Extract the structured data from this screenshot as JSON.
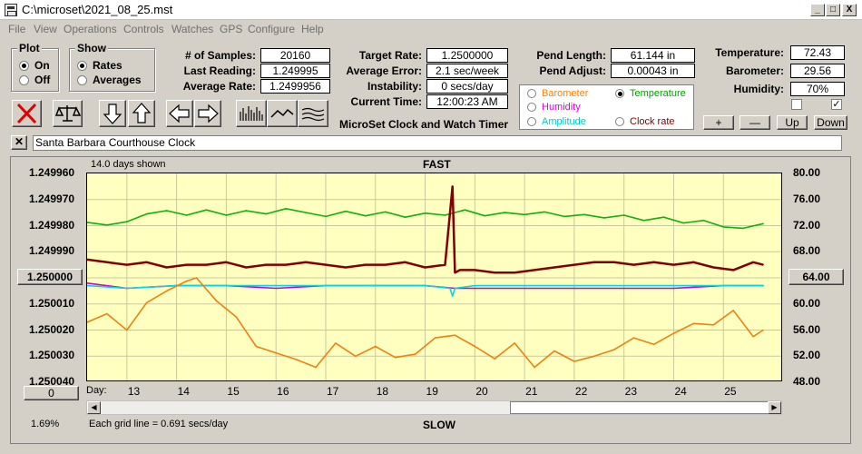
{
  "window": {
    "title": "C:\\microset\\2021_08_25.mst",
    "minimize": "_",
    "maximize": "□",
    "close": "X"
  },
  "menu": [
    "File",
    "View",
    "Operations",
    "Controls",
    "Watches",
    "GPS",
    "Configure",
    "Help"
  ],
  "plot_group": {
    "title": "Plot",
    "options": [
      {
        "label": "On",
        "selected": true
      },
      {
        "label": "Off",
        "selected": false
      }
    ]
  },
  "show_group": {
    "title": "Show",
    "options": [
      {
        "label": "Rates",
        "selected": true
      },
      {
        "label": "Averages",
        "selected": false
      }
    ]
  },
  "stats": {
    "samples_label": "# of Samples:",
    "samples": "20160",
    "last_label": "Last Reading:",
    "last": "1.249995",
    "avg_label": "Average Rate:",
    "avg": "1.2499956"
  },
  "rates": {
    "target_label": "Target Rate:",
    "target": "1.2500000",
    "error_label": "Average Error:",
    "error": "2.1 sec/week",
    "instability_label": "Instability:",
    "instability": "0 secs/day",
    "time_label": "Current Time:",
    "time": "12:00:23 AM"
  },
  "app_title": "MicroSet Clock and Watch Timer",
  "pend": {
    "length_label": "Pend Length:",
    "length": "61.144 in",
    "adjust_label": "Pend Adjust:",
    "adjust": "0.00043 in"
  },
  "selector": [
    {
      "label": "Barometer",
      "color": "#ff8000",
      "selected": false
    },
    {
      "label": "Temperature",
      "color": "#00a000",
      "selected": true
    },
    {
      "label": "Humidity",
      "color": "#e000e0",
      "selected": false
    },
    {
      "label": "Amplitude",
      "color": "#00d0d0",
      "selected": false
    },
    {
      "label": "Clock rate",
      "color": "#800000",
      "selected": false
    }
  ],
  "env": {
    "temp_label": "Temperature:",
    "temp": "72.43",
    "baro_label": "Barometer:",
    "baro": "29.56",
    "hum_label": "Humidity:",
    "hum": "70%"
  },
  "checkboxes": [
    false,
    true
  ],
  "adjust_buttons": {
    "plus": "+",
    "minus": "—",
    "up": "Up",
    "down": "Down"
  },
  "clock_name": {
    "close": "✕",
    "value": "Santa Barbara Courthouse Clock"
  },
  "chart": {
    "days_shown": "14.0 days shown",
    "top_label": "FAST",
    "bottom_label": "SLOW",
    "center_button": "1.250000",
    "right_button": "64.00",
    "zero_button": "0",
    "percent": "1.69%",
    "grid_note": "Each grid line = 0.691 secs/day",
    "day_label": "Day:"
  },
  "chart_data": {
    "type": "line",
    "x_unit": "Day",
    "xlim": [
      12.2,
      26.2
    ],
    "x_ticks": [
      "13",
      "14",
      "15",
      "16",
      "17",
      "18",
      "19",
      "20",
      "21",
      "22",
      "23",
      "24",
      "25"
    ],
    "y_left_ticks": [
      "1.249960",
      "1.249970",
      "1.249980",
      "1.249990",
      "1.250000",
      "1.250010",
      "1.250020",
      "1.250030",
      "1.250040"
    ],
    "y_left_range": [
      1.24996,
      1.25004
    ],
    "y_left_inverted": true,
    "y_right_ticks": [
      "80.00",
      "76.00",
      "72.00",
      "68.00",
      "64.00",
      "60.00",
      "56.00",
      "52.00",
      "48.00"
    ],
    "y_right_range": [
      48,
      80
    ],
    "grid": true,
    "series": [
      {
        "name": "Temperature",
        "color": "#10b010",
        "axis": "right",
        "x": [
          12.2,
          12.6,
          13.0,
          13.4,
          13.8,
          14.2,
          14.6,
          15.0,
          15.4,
          15.8,
          16.2,
          16.6,
          17.0,
          17.4,
          17.8,
          18.2,
          18.6,
          19.0,
          19.4,
          19.8,
          20.2,
          20.6,
          21.0,
          21.4,
          21.8,
          22.2,
          22.6,
          23.0,
          23.4,
          23.8,
          24.2,
          24.6,
          25.0,
          25.4,
          25.8
        ],
        "y": [
          72.5,
          72.1,
          72.6,
          73.8,
          74.3,
          73.6,
          74.4,
          73.6,
          74.3,
          73.8,
          74.6,
          74.0,
          73.4,
          74.2,
          73.5,
          74.1,
          73.3,
          73.9,
          73.6,
          74.4,
          73.5,
          74.0,
          73.7,
          74.1,
          73.4,
          73.7,
          73.2,
          73.6,
          72.8,
          73.3,
          72.4,
          72.8,
          71.8,
          71.6,
          72.3
        ]
      },
      {
        "name": "Clock rate",
        "color": "#800000",
        "axis": "left",
        "x": [
          12.2,
          12.6,
          13.0,
          13.4,
          13.8,
          14.2,
          14.6,
          15.0,
          15.4,
          15.8,
          16.2,
          16.6,
          17.0,
          17.4,
          17.8,
          18.2,
          18.6,
          19.0,
          19.4,
          19.55,
          19.6,
          19.7,
          20.0,
          20.4,
          20.8,
          21.2,
          21.6,
          22.0,
          22.4,
          22.8,
          23.2,
          23.6,
          24.0,
          24.4,
          24.8,
          25.2,
          25.6,
          25.8
        ],
        "y": [
          1.249993,
          1.249994,
          1.249995,
          1.249994,
          1.249996,
          1.249995,
          1.249995,
          1.249994,
          1.249996,
          1.249995,
          1.249995,
          1.249994,
          1.249995,
          1.249996,
          1.249995,
          1.249995,
          1.249994,
          1.249996,
          1.249995,
          1.249965,
          1.249998,
          1.249997,
          1.249997,
          1.249998,
          1.249998,
          1.249997,
          1.249996,
          1.249995,
          1.249994,
          1.249994,
          1.249995,
          1.249994,
          1.249995,
          1.249994,
          1.249996,
          1.249997,
          1.249994,
          1.249995
        ]
      },
      {
        "name": "Humidity",
        "color": "#d000d0",
        "axis": "left",
        "x": [
          12.2,
          13.0,
          14.0,
          15.0,
          16.0,
          17.0,
          18.0,
          19.0,
          19.6,
          20.0,
          21.0,
          22.0,
          23.0,
          24.0,
          25.0,
          25.8
        ],
        "y": [
          1.250002,
          1.250004,
          1.250003,
          1.250003,
          1.250004,
          1.250003,
          1.250003,
          1.250003,
          1.250004,
          1.250004,
          1.250004,
          1.250004,
          1.250004,
          1.250004,
          1.250003,
          1.250003
        ]
      },
      {
        "name": "Amplitude",
        "color": "#00d8e8",
        "axis": "left",
        "x": [
          12.2,
          13.0,
          14.0,
          15.0,
          16.0,
          17.0,
          18.0,
          19.0,
          19.5,
          19.55,
          19.6,
          20.0,
          21.0,
          22.0,
          23.0,
          24.0,
          25.0,
          25.8
        ],
        "y": [
          1.250003,
          1.250004,
          1.250003,
          1.250003,
          1.250003,
          1.250003,
          1.250003,
          1.250003,
          1.250004,
          1.250007,
          1.250004,
          1.250003,
          1.250003,
          1.250003,
          1.250003,
          1.250003,
          1.250003,
          1.250003
        ]
      },
      {
        "name": "Barometer",
        "color": "#f08010",
        "axis": "right",
        "x": [
          12.2,
          12.6,
          13.0,
          13.4,
          13.8,
          14.2,
          14.4,
          14.8,
          15.2,
          15.6,
          16.0,
          16.4,
          16.8,
          17.2,
          17.6,
          18.0,
          18.4,
          18.8,
          19.2,
          19.6,
          20.0,
          20.4,
          20.8,
          21.2,
          21.6,
          22.0,
          22.4,
          22.8,
          23.2,
          23.6,
          24.0,
          24.4,
          24.8,
          25.2,
          25.6,
          25.8
        ],
        "y": [
          57.2,
          58.5,
          56.0,
          60.2,
          62.0,
          63.5,
          64.0,
          60.5,
          58.0,
          53.5,
          52.5,
          51.5,
          50.3,
          54.0,
          52.0,
          53.5,
          51.8,
          52.3,
          54.8,
          55.2,
          53.5,
          51.6,
          54.0,
          50.3,
          52.8,
          51.2,
          52.0,
          53.0,
          54.8,
          53.8,
          55.5,
          57.0,
          56.8,
          59.0,
          55.0,
          56.0
        ]
      }
    ]
  }
}
